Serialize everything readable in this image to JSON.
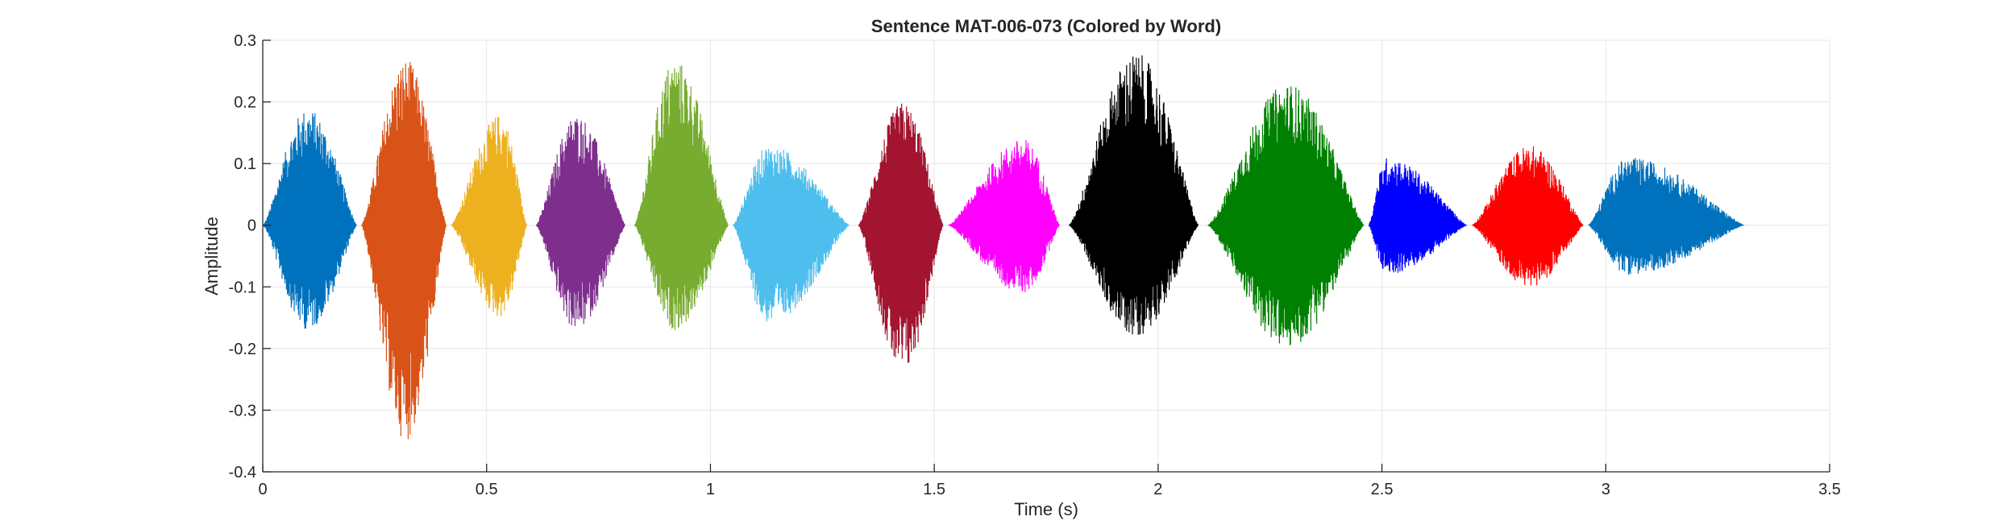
{
  "chart_data": {
    "type": "line",
    "title": "Sentence MAT-006-073 (Colored by Word)",
    "xlabel": "Time (s)",
    "ylabel": "Amplitude",
    "xlim": [
      0,
      3.5
    ],
    "ylim": [
      -0.4,
      0.3
    ],
    "xticks": [
      0,
      0.5,
      1,
      1.5,
      2,
      2.5,
      3,
      3.5
    ],
    "xtick_labels": [
      "0",
      "0.5",
      "1",
      "1.5",
      "2",
      "2.5",
      "3",
      "3.5"
    ],
    "yticks": [
      -0.4,
      -0.3,
      -0.2,
      -0.1,
      0,
      0.1,
      0.2,
      0.3
    ],
    "ytick_labels": [
      "-0.4",
      "-0.3",
      "-0.2",
      "-0.1",
      "0",
      "0.1",
      "0.2",
      "0.3"
    ],
    "grid": true,
    "legend": false,
    "series": [
      {
        "start": 0.0,
        "end": 0.21,
        "peak_time": 0.1,
        "max": 0.19,
        "min": -0.17,
        "color": "#0072BD"
      },
      {
        "start": 0.22,
        "end": 0.41,
        "peak_time": 0.32,
        "max": 0.27,
        "min": -0.35,
        "color": "#D95319"
      },
      {
        "start": 0.42,
        "end": 0.59,
        "peak_time": 0.53,
        "max": 0.18,
        "min": -0.15,
        "color": "#EDB120"
      },
      {
        "start": 0.61,
        "end": 0.81,
        "peak_time": 0.7,
        "max": 0.18,
        "min": -0.17,
        "color": "#7E2F8E"
      },
      {
        "start": 0.83,
        "end": 1.04,
        "peak_time": 0.92,
        "max": 0.27,
        "min": -0.17,
        "color": "#77AC30"
      },
      {
        "start": 1.05,
        "end": 1.31,
        "peak_time": 1.13,
        "max": 0.13,
        "min": -0.16,
        "color": "#4DBEEE"
      },
      {
        "start": 1.33,
        "end": 1.52,
        "peak_time": 1.43,
        "max": 0.2,
        "min": -0.24,
        "color": "#A2142F"
      },
      {
        "start": 1.53,
        "end": 1.78,
        "peak_time": 1.7,
        "max": 0.14,
        "min": -0.11,
        "color": "#FF00FF"
      },
      {
        "start": 1.8,
        "end": 2.09,
        "peak_time": 1.95,
        "max": 0.28,
        "min": -0.18,
        "color": "#000000"
      },
      {
        "start": 2.11,
        "end": 2.46,
        "peak_time": 2.29,
        "max": 0.23,
        "min": -0.2,
        "color": "#008000"
      },
      {
        "start": 2.47,
        "end": 2.69,
        "peak_time": 2.51,
        "max": 0.11,
        "min": -0.08,
        "color": "#0000FF"
      },
      {
        "start": 2.7,
        "end": 2.95,
        "peak_time": 2.83,
        "max": 0.13,
        "min": -0.1,
        "color": "#FF0000"
      },
      {
        "start": 2.96,
        "end": 3.31,
        "peak_time": 3.05,
        "max": 0.11,
        "min": -0.08,
        "color": "#0072BD"
      }
    ]
  }
}
